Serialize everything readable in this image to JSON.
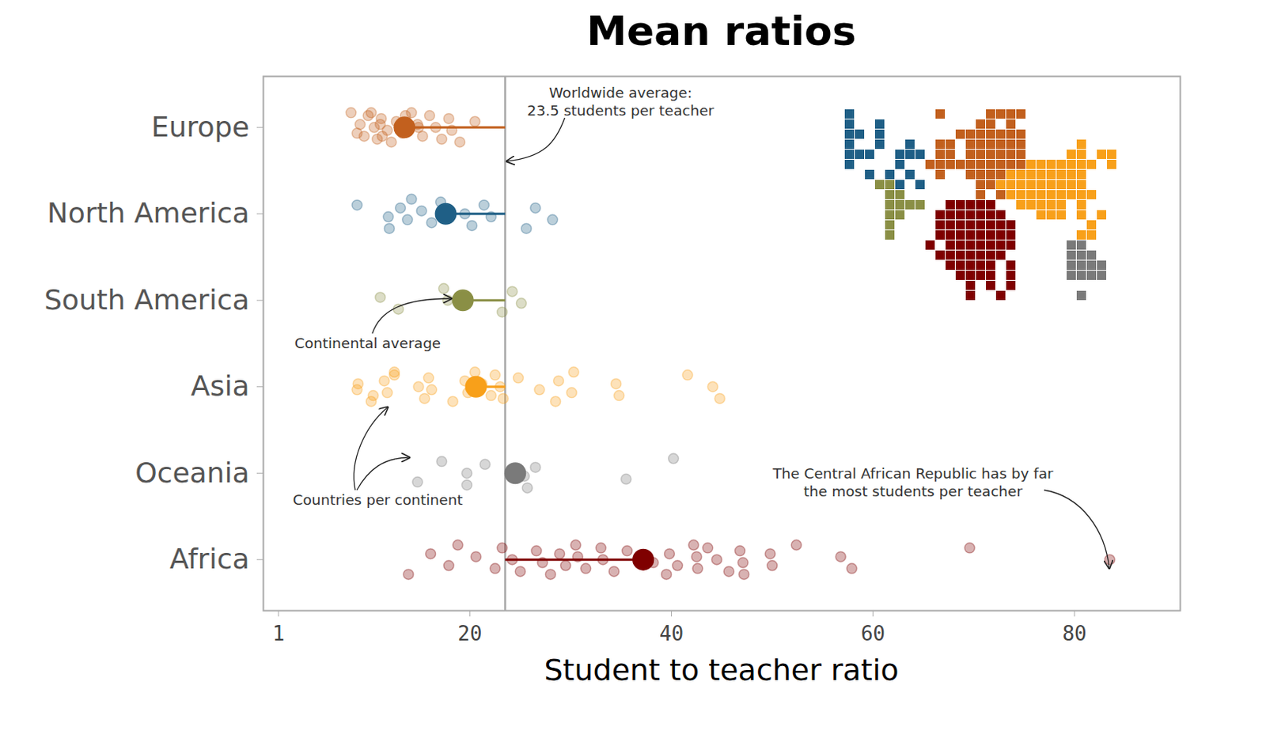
{
  "chart_data": {
    "type": "scatter",
    "title": "Mean ratios",
    "x_label": "Student to teacher ratio",
    "categories": [
      "Europe",
      "North America",
      "South America",
      "Asia",
      "Oceania",
      "Africa"
    ],
    "colors": [
      "#c2601e",
      "#1f5f86",
      "#8a8f45",
      "#f8a01a",
      "#7a7a7a",
      "#7f0000"
    ],
    "values": [
      [
        8.2,
        9.1,
        9.5,
        9.9,
        10.5,
        10.8,
        11.2,
        11.8,
        12.2,
        12.7,
        13.3,
        14.2,
        14.8,
        15.3,
        16.0,
        16.6,
        17.2,
        17.9,
        18.2,
        19.0,
        20.5,
        8.8,
        10.2,
        11.1,
        11.3,
        13.6,
        14.9
      ],
      [
        8.8,
        11.9,
        12.0,
        13.1,
        13.8,
        14.2,
        15.2,
        16.2,
        17.1,
        19.5,
        20.2,
        21.4,
        22.1,
        25.6,
        26.5,
        28.2
      ],
      [
        11.1,
        12.9,
        17.4,
        17.8,
        23.2,
        24.2,
        25.1
      ],
      [
        8.8,
        10.2,
        11.5,
        11.8,
        12.5,
        8.9,
        10.4,
        12.5,
        14.9,
        15.5,
        15.9,
        16.2,
        18.3,
        19.5,
        19.8,
        20.5,
        21.2,
        22.1,
        22.5,
        23.0,
        23.3,
        24.8,
        26.9,
        28.5,
        28.8,
        30.1,
        30.3,
        34.5,
        34.8,
        41.6,
        44.1,
        44.8
      ],
      [
        14.8,
        17.2,
        19.7,
        19.7,
        21.5,
        25.4,
        25.7,
        26.5,
        35.5,
        40.2
      ],
      [
        13.9,
        16.1,
        17.9,
        18.8,
        20.6,
        22.5,
        23.2,
        24.2,
        25.0,
        26.6,
        27.2,
        28.0,
        28.9,
        29.5,
        30.5,
        30.7,
        31.5,
        33.0,
        33.2,
        34.3,
        35.6,
        38.2,
        39.5,
        39.8,
        40.6,
        42.2,
        42.5,
        42.6,
        43.6,
        44.5,
        45.7,
        46.8,
        47.1,
        47.2,
        49.8,
        50.0,
        52.4,
        56.8,
        57.9,
        69.6,
        83.5
      ]
    ],
    "means": [
      13.5,
      17.6,
      19.3,
      20.6,
      24.5,
      37.2
    ],
    "worldwide_average": 23.5,
    "xlim": [
      -0.5,
      90.5
    ],
    "xticks": [
      1,
      20,
      40,
      60,
      80
    ],
    "annotations": [
      [
        "Worldwide average:",
        "23.5 students per teacher"
      ],
      [
        "Continental average"
      ],
      [
        "Countries per continent"
      ],
      [
        "The Central African Republic has by far",
        "the most students per teacher"
      ]
    ]
  }
}
